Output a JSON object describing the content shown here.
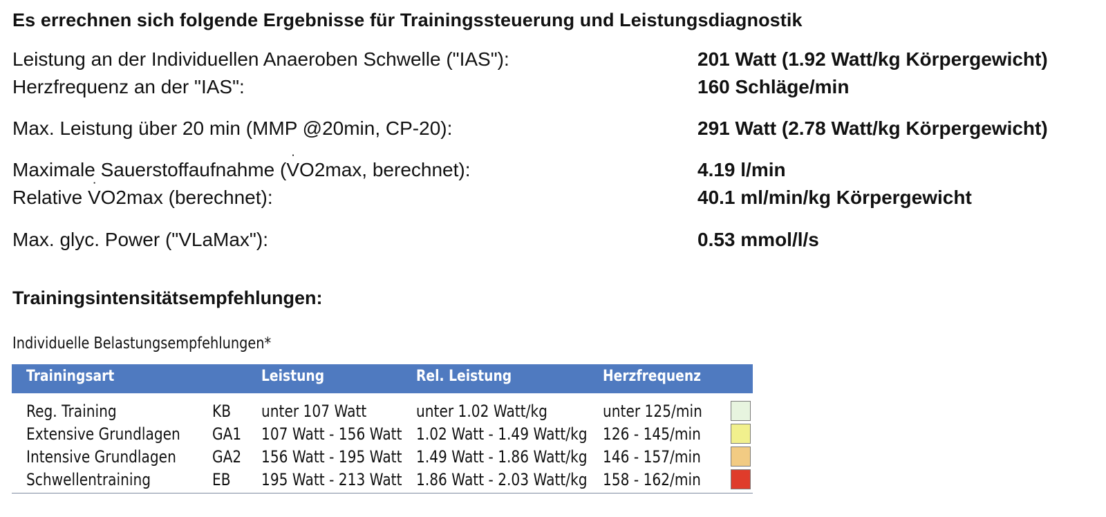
{
  "title": "Es errechnen sich folgende Ergebnisse für Trainingssteuerung und Leistungsdiagnostik",
  "results": [
    {
      "label": "Leistung an der Individuellen Anaeroben Schwelle (\"IAS\"):",
      "value": "201 Watt (1.92 Watt/kg Körpergewicht)"
    },
    {
      "label": "Herzfrequenz an der \"IAS\":",
      "value": "160 Schläge/min"
    },
    {
      "label": "Max. Leistung über 20 min (MMP @20min, CP-20):",
      "value": "291 Watt (2.78 Watt/kg Körpergewicht)"
    },
    {
      "label_prefix": "Maximale Sauerstoffaufnahme (",
      "label_vo2_letter": "V",
      "label_vo2_o": "O",
      "label_vo2_sub": "2",
      "label_suffix": "max, berechnet):",
      "value": "4.19 l/min"
    },
    {
      "label_prefix": "Relative ",
      "label_vo2_letter": "V",
      "label_vo2_o": "O",
      "label_vo2_sub": "2",
      "label_suffix": "max (berechnet):",
      "value": "40.1 ml/min/kg Körpergewicht"
    },
    {
      "label": "Max. glyc. Power (\"VLaMax\"):",
      "value": "0.53 mmol/l/s"
    }
  ],
  "section": {
    "title": "Trainingsintensitätsempfehlungen:"
  },
  "table": {
    "caption": "Individuelle Belastungsempfehlungen*",
    "headers": {
      "trainingsart": "Trainingsart",
      "leistung": "Leistung",
      "rel_leistung": "Rel. Leistung",
      "herzfrequenz": "Herzfrequenz"
    },
    "rows": [
      {
        "name": "Reg. Training",
        "code": "KB",
        "leistung": "unter 107 Watt",
        "rel_leistung": "unter 1.02 Watt/kg",
        "herzfrequenz": "unter 125/min",
        "color": "#e7f4df"
      },
      {
        "name": "Extensive Grundlagen",
        "code": "GA1",
        "leistung": "107 Watt - 156 Watt",
        "rel_leistung": "1.02 Watt - 1.49 Watt/kg",
        "herzfrequenz": "126 - 145/min",
        "color": "#f1f08d"
      },
      {
        "name": "Intensive Grundlagen",
        "code": "GA2",
        "leistung": "156 Watt - 195 Watt",
        "rel_leistung": "1.49 Watt - 1.86 Watt/kg",
        "herzfrequenz": "146 - 157/min",
        "color": "#f2cb83"
      },
      {
        "name": "Schwellentraining",
        "code": "EB",
        "leistung": "195 Watt - 213 Watt",
        "rel_leistung": "1.86 Watt - 2.03 Watt/kg",
        "herzfrequenz": "158 - 162/min",
        "color": "#df3c2b"
      }
    ]
  }
}
